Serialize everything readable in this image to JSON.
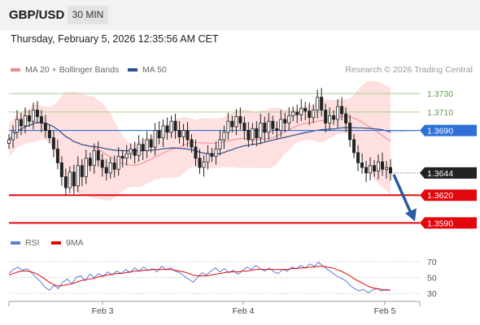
{
  "header": {
    "symbol": "GBP/USD",
    "timeframe": "30 MIN"
  },
  "timestamp": "Thursday, February 5, 2026 12:35:56 AM CET",
  "legend": {
    "ma20": {
      "label": "MA 20 + Bollinger Bands",
      "color": "#f28b8b"
    },
    "ma50": {
      "label": "MA 50",
      "color": "#2a4f8f"
    },
    "copyright": "Research © 2026 Trading Central"
  },
  "chart_data": {
    "type": "candlestick",
    "price_axis": {
      "ylim": [
        1.3578,
        1.3745
      ]
    },
    "levels": [
      {
        "value": 1.373,
        "label": "1.3730",
        "kind": "target",
        "color": "#a6cf8f"
      },
      {
        "value": 1.371,
        "label": "1.3710",
        "kind": "target",
        "color": "#a6cf8f"
      },
      {
        "value": 1.369,
        "label": "1.3690",
        "kind": "pivot",
        "color": "#2f6fd6"
      },
      {
        "value": 1.3644,
        "label": "1.3644",
        "kind": "last",
        "color": "#222222"
      },
      {
        "value": 1.362,
        "label": "1.3620",
        "kind": "support",
        "color": "#e3060c"
      },
      {
        "value": 1.359,
        "label": "1.3590",
        "kind": "support",
        "color": "#e3060c"
      }
    ],
    "closes": [
      1.368,
      1.3688,
      1.3702,
      1.3695,
      1.3706,
      1.37,
      1.3712,
      1.3705,
      1.3698,
      1.369,
      1.3682,
      1.367,
      1.3655,
      1.364,
      1.3628,
      1.3645,
      1.363,
      1.3652,
      1.364,
      1.366,
      1.3652,
      1.3668,
      1.3658,
      1.365,
      1.3644,
      1.3655,
      1.3648,
      1.3662,
      1.366,
      1.3665,
      1.367,
      1.3663,
      1.3675,
      1.3668,
      1.368,
      1.3672,
      1.369,
      1.3682,
      1.3695,
      1.3688,
      1.37,
      1.369,
      1.3683,
      1.369,
      1.368,
      1.3672,
      1.366,
      1.365,
      1.3656,
      1.3665,
      1.3662,
      1.367,
      1.368,
      1.3688,
      1.37,
      1.3694,
      1.3705,
      1.3698,
      1.369,
      1.368,
      1.3692,
      1.3682,
      1.3698,
      1.3688,
      1.37,
      1.3692,
      1.369,
      1.3702,
      1.3698,
      1.3706,
      1.371,
      1.3707,
      1.3714,
      1.3711,
      1.3704,
      1.3712,
      1.3726,
      1.3712,
      1.3698,
      1.3706,
      1.3702,
      1.3716,
      1.3708,
      1.3698,
      1.368,
      1.3666,
      1.3655,
      1.365,
      1.3644,
      1.3652,
      1.3646,
      1.3656,
      1.3648,
      1.365,
      1.3644
    ],
    "ma50_endpoints": [
      1.3705,
      1.369
    ],
    "forecast_arrow": {
      "from": 1.3644,
      "to": 1.359
    },
    "x_ticks": [
      "Feb 3",
      "Feb 4",
      "Feb 5"
    ],
    "rsi": {
      "legend": [
        {
          "label": "RSI",
          "color": "#5b7fd6"
        },
        {
          "label": "9MA",
          "color": "#e3060c"
        }
      ],
      "ticks": [
        70,
        50,
        30
      ],
      "ylim": [
        25,
        78
      ],
      "rsi_values": [
        55,
        60,
        63,
        59,
        61,
        56,
        50,
        45,
        38,
        34,
        40,
        36,
        44,
        48,
        42,
        50,
        52,
        46,
        54,
        50,
        55,
        51,
        57,
        53,
        58,
        55,
        60,
        56,
        62,
        58,
        63,
        59,
        61,
        57,
        64,
        60,
        62,
        58,
        56,
        52,
        48,
        44,
        50,
        56,
        53,
        58,
        62,
        57,
        61,
        56,
        59,
        54,
        58,
        63,
        60,
        65,
        61,
        58,
        62,
        57,
        55,
        60,
        58,
        63,
        61,
        65,
        62,
        67,
        64,
        69,
        64,
        60,
        56,
        52,
        49,
        46,
        40,
        36,
        33,
        35,
        31,
        34,
        36,
        33,
        35,
        34
      ],
      "ma9_values": [
        53,
        55,
        57,
        58,
        58,
        57,
        55,
        52,
        48,
        44,
        41,
        39,
        40,
        41,
        42,
        44,
        46,
        47,
        48,
        49,
        51,
        52,
        53,
        54,
        55,
        55,
        56,
        57,
        58,
        58,
        59,
        59,
        60,
        60,
        60,
        60,
        60,
        59,
        58,
        57,
        55,
        53,
        52,
        52,
        52,
        53,
        54,
        55,
        56,
        57,
        57,
        57,
        58,
        58,
        59,
        60,
        60,
        60,
        60,
        60,
        60,
        60,
        60,
        61,
        61,
        62,
        62,
        63,
        63,
        64,
        64,
        63,
        62,
        60,
        58,
        55,
        52,
        48,
        45,
        42,
        39,
        37,
        36,
        35,
        34,
        34
      ]
    }
  }
}
